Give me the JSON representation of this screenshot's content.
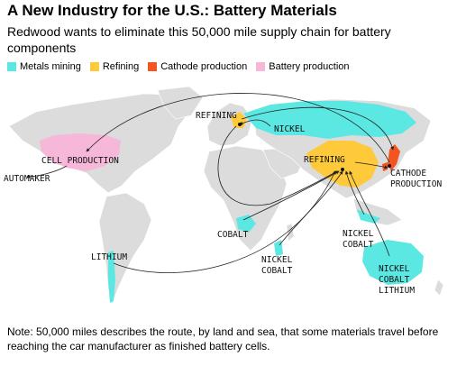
{
  "title": "A New Industry for the U.S.: Battery Materials",
  "subtitle": "Redwood wants to eliminate this 50,000 mile supply chain for battery components",
  "legend": [
    {
      "label": "Metals mining",
      "color": "#5ce8e2"
    },
    {
      "label": "Refining",
      "color": "#ffc93c"
    },
    {
      "label": "Cathode production",
      "color": "#f2551f"
    },
    {
      "label": "Battery production",
      "color": "#f7b7d9"
    }
  ],
  "map_labels": {
    "refining_europe": "REFINING",
    "nickel_russia": "NICKEL",
    "cell_production": "CELL PRODUCTION",
    "automaker": "AUTOMAKER",
    "refining_china": "REFINING",
    "cathode_1": "CATHODE",
    "cathode_2": "PRODUCTION",
    "cobalt_africa": "COBALT",
    "lithium_sa": "LITHIUM",
    "nickel_africa_1": "NICKEL",
    "nickel_africa_2": "COBALT",
    "nickel_indo_1": "NICKEL",
    "nickel_indo_2": "COBALT",
    "aus_1": "NICKEL",
    "aus_2": "COBALT",
    "aus_3": "LITHIUM"
  },
  "note": "Note: 50,000 miles describes the route, by land and sea, that some materials travel before reaching the car manufacturer as finished battery cells."
}
